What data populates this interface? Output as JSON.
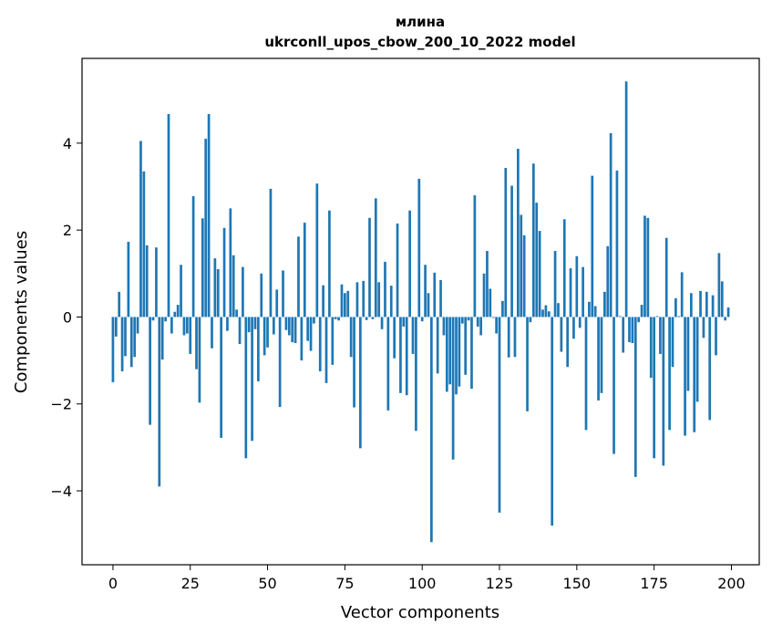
{
  "chart_data": {
    "type": "bar",
    "title_line1": "млина",
    "title_line2": "ukrconll_upos_cbow_200_10_2022 model",
    "xlabel": "Vector components",
    "ylabel": "Components values",
    "xlim": [
      -10,
      209
    ],
    "ylim": [
      -5.7,
      5.95
    ],
    "xticks": [
      0,
      25,
      50,
      75,
      100,
      125,
      150,
      175,
      200
    ],
    "yticks": [
      -4,
      -2,
      0,
      2,
      4
    ],
    "bar_color": "#1f77b4",
    "grid": false,
    "legend": "none",
    "values": [
      -1.5,
      -0.45,
      0.58,
      -1.25,
      -0.9,
      1.73,
      -1.15,
      -0.92,
      -0.38,
      4.05,
      3.35,
      1.65,
      -2.48,
      -0.08,
      1.6,
      -3.9,
      -0.98,
      -0.1,
      4.67,
      -0.38,
      0.12,
      0.28,
      1.2,
      -0.42,
      -0.38,
      -0.85,
      2.78,
      -1.2,
      -1.97,
      2.27,
      4.1,
      4.67,
      -0.72,
      1.35,
      1.1,
      -2.78,
      2.05,
      -0.32,
      2.5,
      1.42,
      0.17,
      -0.62,
      1.15,
      -3.25,
      -0.35,
      -2.85,
      -0.28,
      -1.48,
      1.0,
      -0.88,
      -0.7,
      2.95,
      -0.4,
      0.63,
      -2.07,
      1.07,
      -0.3,
      -0.42,
      -0.58,
      -0.6,
      1.85,
      -1.0,
      2.17,
      -0.55,
      -0.78,
      -0.15,
      3.07,
      -1.25,
      0.73,
      -1.52,
      2.45,
      -1.1,
      -0.05,
      -0.08,
      0.75,
      0.55,
      0.6,
      -0.92,
      -2.08,
      0.8,
      -3.02,
      0.83,
      -0.07,
      2.28,
      -0.05,
      2.73,
      0.8,
      -0.28,
      1.27,
      -2.15,
      0.72,
      -0.95,
      2.15,
      -1.75,
      -0.22,
      -1.8,
      2.45,
      -0.85,
      -2.62,
      3.18,
      -0.1,
      1.2,
      0.55,
      -5.18,
      1.02,
      -1.3,
      0.85,
      -0.42,
      -1.72,
      -1.55,
      -3.28,
      -1.78,
      -1.6,
      -0.15,
      -1.33,
      -0.08,
      -1.65,
      2.8,
      -0.22,
      -0.42,
      1.0,
      1.52,
      0.65,
      -0.02,
      -0.38,
      -4.5,
      0.37,
      3.43,
      -0.93,
      3.02,
      -0.92,
      3.87,
      2.35,
      1.88,
      -2.17,
      -0.12,
      3.53,
      2.63,
      1.98,
      0.17,
      0.27,
      0.13,
      -4.8,
      1.52,
      0.32,
      -0.8,
      2.25,
      -1.15,
      1.12,
      -0.5,
      1.4,
      -0.25,
      1.15,
      -2.6,
      0.35,
      3.25,
      0.25,
      -1.92,
      -1.75,
      0.58,
      1.63,
      4.23,
      -3.15,
      3.37,
      0.02,
      -0.82,
      5.42,
      -0.58,
      -0.6,
      -3.68,
      -0.12,
      0.28,
      2.33,
      2.28,
      -1.4,
      -3.25,
      0.02,
      -0.85,
      -3.42,
      1.82,
      -2.6,
      -1.15,
      0.43,
      0.02,
      1.03,
      -2.73,
      -1.7,
      0.55,
      -2.65,
      -1.95,
      0.6,
      -0.48,
      0.58,
      -2.37,
      0.5,
      -0.88,
      1.47,
      0.82,
      -0.08,
      0.22
    ]
  }
}
